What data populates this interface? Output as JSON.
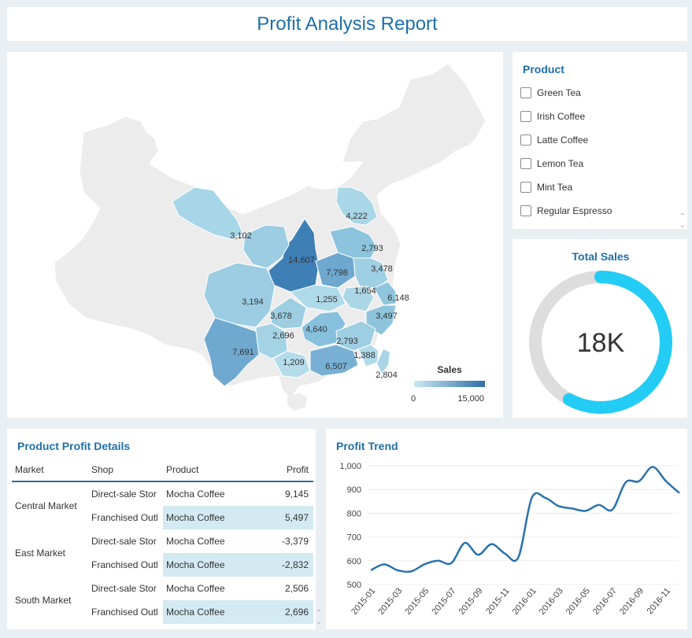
{
  "report": {
    "title": "Profit Analysis Report"
  },
  "map": {
    "labels": [
      "4,222",
      "3,102",
      "14,607",
      "2,793",
      "7,798",
      "3,478",
      "1,654",
      "6,148",
      "3,194",
      "1,255",
      "3,678",
      "3,497",
      "2,696",
      "4,640",
      "2,793",
      "7,691",
      "1,209",
      "6,507",
      "1,388",
      "2,804"
    ],
    "legend": {
      "title": "Sales",
      "min": "0",
      "max": "15,000",
      "color_low": "#cdeaf3",
      "color_high": "#2e6ea8"
    }
  },
  "product_filter": {
    "title": "Product",
    "options": [
      "Green Tea",
      "Irish Coffee",
      "Latte Coffee",
      "Lemon Tea",
      "Mint Tea",
      "Regular Espresso"
    ]
  },
  "total_sales": {
    "title": "Total Sales",
    "value": "18K",
    "progress": 0.58,
    "color": "#22ccf5",
    "track_color": "#dddddd"
  },
  "details": {
    "title": "Product Profit Details",
    "columns": [
      "Market",
      "Shop",
      "Product",
      "Profit"
    ],
    "rows": [
      {
        "market": "Central Market",
        "shop1": "Direct-sale Stor",
        "product1": "Mocha Coffee",
        "profit1": "9,145",
        "shop2": "Franchised Outl",
        "product2": "Mocha Coffee",
        "profit2": "5,497"
      },
      {
        "market": "East Market",
        "shop1": "Direct-sale Stor",
        "product1": "Mocha Coffee",
        "profit1": "-3,379",
        "shop2": "Franchised Outl",
        "product2": "Mocha Coffee",
        "profit2": "-2,832"
      },
      {
        "market": "South Market",
        "shop1": "Direct-sale Stor",
        "product1": "Mocha Coffee",
        "profit1": "2,506",
        "shop2": "Franchised Outl",
        "product2": "Mocha Coffee",
        "profit2": "2,696"
      }
    ]
  },
  "trend": {
    "title": "Profit Trend"
  },
  "chart_data": {
    "type": "line",
    "title": "Profit Trend",
    "x": [
      "2015-01",
      "2015-02",
      "2015-03",
      "2015-04",
      "2015-05",
      "2015-06",
      "2015-07",
      "2015-08",
      "2015-09",
      "2015-10",
      "2015-11",
      "2015-12",
      "2016-01",
      "2016-02",
      "2016-03",
      "2016-04",
      "2016-05",
      "2016-06",
      "2016-07",
      "2016-08",
      "2016-09",
      "2016-10",
      "2016-11",
      "2016-12"
    ],
    "x_tick_labels": [
      "2015-01",
      "2015-03",
      "2015-05",
      "2015-07",
      "2015-09",
      "2015-11",
      "2016-01",
      "2016-03",
      "2016-05",
      "2016-07",
      "2016-09",
      "2016-11"
    ],
    "series": [
      {
        "values": [
          560,
          585,
          560,
          555,
          585,
          600,
          590,
          675,
          625,
          670,
          630,
          615,
          865,
          865,
          830,
          820,
          810,
          835,
          815,
          930,
          935,
          995,
          935,
          885
        ]
      }
    ],
    "y_ticks": [
      "500",
      "600",
      "700",
      "800",
      "900",
      "1,000"
    ],
    "ylim": [
      500,
      1000
    ],
    "grid": true,
    "color": "#2a73ad"
  }
}
